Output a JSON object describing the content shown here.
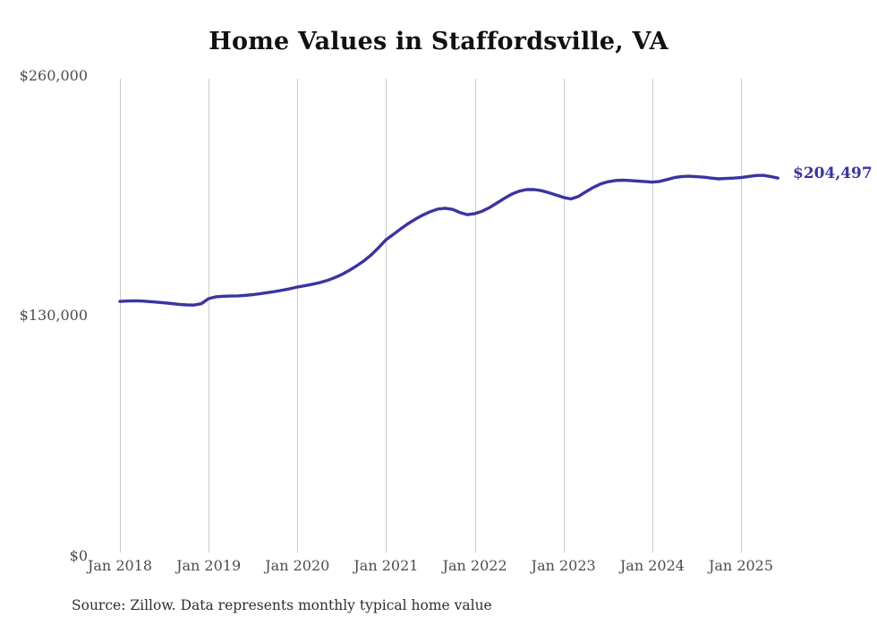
{
  "chart": {
    "source_note": "Source: Zillow. Data represents monthly typical home value",
    "colors": {
      "line": "#3a34a2",
      "grid": "#cbcbcb",
      "tick_text": "#4d4d4d",
      "title_text": "#111111",
      "source_text": "#2f2f2f",
      "background": "#ffffff"
    }
  },
  "chart_data": {
    "type": "line",
    "title": "Home Values in Staffordsville, VA",
    "xlabel": "",
    "ylabel": "",
    "unit": "USD",
    "frequency": "monthly",
    "x_start": "2018-01",
    "x_end": "2025-06",
    "ylim": [
      0,
      260000
    ],
    "grid": "vertical-only",
    "legend": "none",
    "final_value": 204497,
    "final_value_label": "$204,497",
    "y_tick_labels": [
      "$260,000",
      "$130,000",
      "$0"
    ],
    "y_tick_values": [
      260000,
      130000,
      0
    ],
    "x_tick_labels": [
      "Jan 2018",
      "Jan 2019",
      "Jan 2020",
      "Jan 2021",
      "Jan 2022",
      "Jan 2023",
      "Jan 2024",
      "Jan 2025"
    ],
    "values": [
      137500,
      137700,
      137800,
      137700,
      137400,
      137100,
      136700,
      136300,
      135900,
      135600,
      135500,
      136200,
      139000,
      140000,
      140300,
      140400,
      140500,
      140800,
      141200,
      141700,
      142300,
      142900,
      143600,
      144400,
      145300,
      146000,
      146800,
      147700,
      148800,
      150300,
      152100,
      154300,
      156800,
      159500,
      162800,
      166800,
      171000,
      174000,
      177000,
      179800,
      182300,
      184500,
      186300,
      187700,
      188100,
      187500,
      185800,
      184600,
      185200,
      186500,
      188500,
      191000,
      193500,
      195800,
      197400,
      198300,
      198300,
      197700,
      196600,
      195300,
      194000,
      193200,
      194500,
      197000,
      199400,
      201300,
      202500,
      203200,
      203400,
      203200,
      202900,
      202600,
      202300,
      202700,
      203700,
      204800,
      205400,
      205500,
      205300,
      205000,
      204500,
      204100,
      204300,
      204500,
      204800,
      205400,
      205900,
      206000,
      205400,
      204497
    ]
  }
}
